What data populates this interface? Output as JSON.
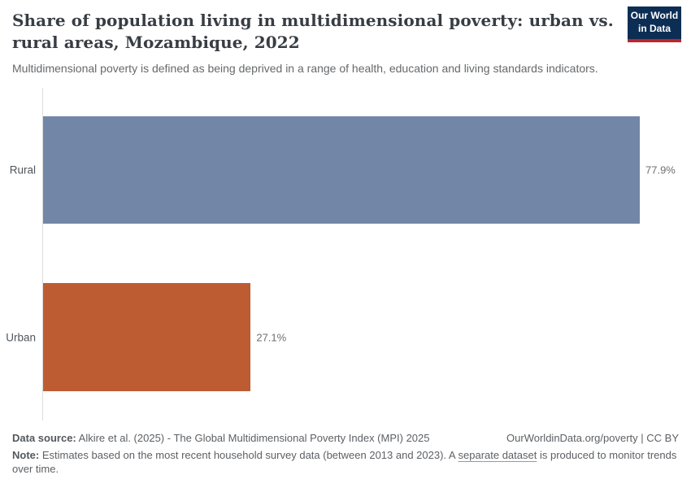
{
  "header": {
    "title": "Share of population living in multidimensional poverty: urban vs. rural areas, Mozambique, 2022",
    "subtitle": "Multidimensional poverty is defined as being deprived in a range of health, education and living standards indicators.",
    "logo": {
      "line1": "Our World",
      "line2": "in Data"
    }
  },
  "chart_data": {
    "type": "bar",
    "orientation": "horizontal",
    "title": "Share of population living in multidimensional poverty: urban vs. rural areas, Mozambique, 2022",
    "categories": [
      "Rural",
      "Urban"
    ],
    "values": [
      77.9,
      27.1
    ],
    "value_labels": [
      "77.9%",
      "27.1%"
    ],
    "colors": [
      "#7286a7",
      "#bd5c33"
    ],
    "unit": "%",
    "xlabel": "",
    "ylabel": "",
    "xlim": [
      0,
      77.9
    ],
    "grid": false,
    "legend": "none"
  },
  "footer": {
    "datasource_label": "Data source:",
    "datasource_text": " Alkire et al. (2025) - The Global Multidimensional Poverty Index (MPI) 2025",
    "attribution_link": "OurWorldinData.org/poverty",
    "attribution_suffix": " | CC BY",
    "note_label": "Note:",
    "note_before_link": " Estimates based on the most recent household survey data (between 2013 and 2023). A ",
    "note_link": "separate dataset",
    "note_after_link": " is produced to monitor trends over time."
  },
  "colors": {
    "rural_bar": "#7286a7",
    "urban_bar": "#bd5c33",
    "logo_bg": "#0d2e54",
    "logo_stripe": "#c0232c",
    "axis_line": "#dcdcdc",
    "title_text": "#383d44",
    "body_text": "#5d6064"
  }
}
